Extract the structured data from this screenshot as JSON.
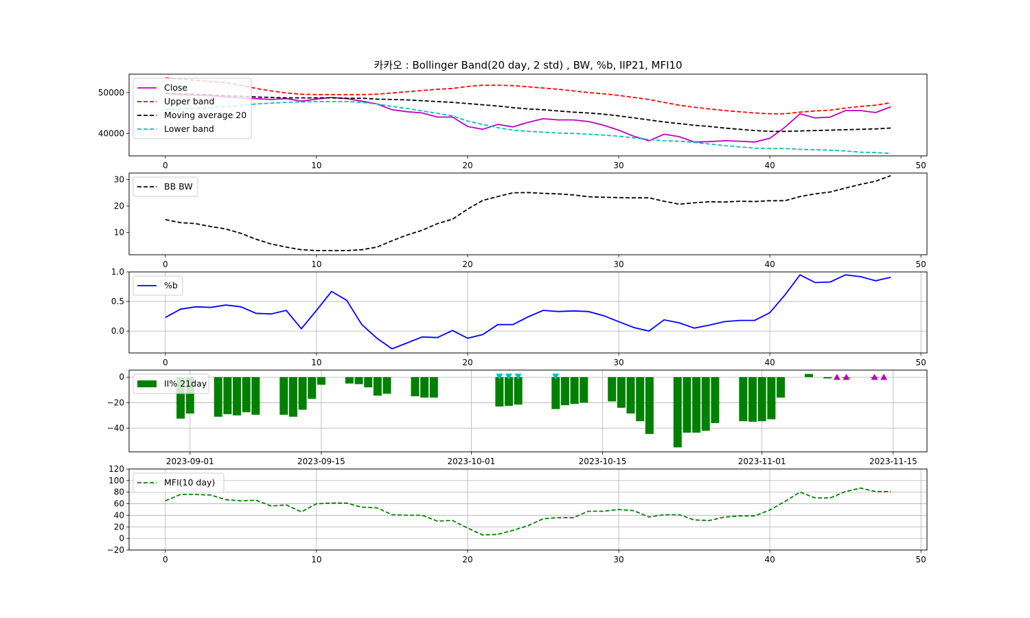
{
  "title": "카카오 : Bollinger Band(20 day, 2 std) , BW, %b, IIP21, MFI10",
  "colors": {
    "close": "#bf00bf",
    "upper": "#ff0000",
    "ma": "#000000",
    "lower": "#00bfbf",
    "bw": "#000000",
    "pb": "#0000ff",
    "iip": "#008000",
    "mfi": "#008000",
    "buy": "#bf00bf",
    "sell": "#00bfbf"
  },
  "chart_data": [
    {
      "type": "line",
      "name": "bollinger",
      "xlim": [
        -2.4,
        50.4
      ],
      "ylim": [
        34500,
        54500
      ],
      "xticks": [
        0,
        10,
        20,
        30,
        40,
        50
      ],
      "yticks": [
        40000,
        50000
      ],
      "grid": false,
      "legend": "upper-left",
      "series": [
        {
          "name": "Close",
          "color": "close",
          "dash": false,
          "values": [
            49800,
            49500,
            49300,
            49200,
            48900,
            48700,
            48500,
            48300,
            48500,
            47900,
            48400,
            48800,
            48500,
            47900,
            47200,
            45800,
            45300,
            45000,
            44000,
            44000,
            41700,
            41000,
            42200,
            41600,
            42700,
            43600,
            43300,
            43300,
            42900,
            42000,
            40800,
            39300,
            38200,
            39800,
            39200,
            37900,
            38000,
            38200,
            38100,
            37900,
            38800,
            41500,
            44800,
            43800,
            44000,
            45600,
            45600,
            45100,
            46500
          ]
        },
        {
          "name": "Upper band",
          "color": "upper",
          "dash": true,
          "values": [
            53600,
            53300,
            53000,
            52700,
            52400,
            51800,
            51000,
            50400,
            49900,
            49600,
            49500,
            49500,
            49500,
            49500,
            49600,
            49900,
            50200,
            50500,
            50800,
            51000,
            51500,
            51800,
            51800,
            51700,
            51400,
            51100,
            50800,
            50400,
            50000,
            49700,
            49300,
            48800,
            48300,
            47600,
            46900,
            46400,
            46000,
            45600,
            45300,
            45000,
            44800,
            44800,
            45200,
            45500,
            45700,
            46200,
            46600,
            46900,
            47500
          ]
        },
        {
          "name": "Moving average 20",
          "color": "ma",
          "dash": true,
          "values": [
            49800,
            49700,
            49600,
            49400,
            49200,
            49100,
            48900,
            48800,
            48700,
            48700,
            48700,
            48700,
            48600,
            48600,
            48400,
            48300,
            48200,
            48000,
            47800,
            47600,
            47300,
            47000,
            46700,
            46300,
            46000,
            45800,
            45500,
            45200,
            45000,
            44700,
            44300,
            43800,
            43300,
            42800,
            42400,
            42000,
            41700,
            41300,
            41000,
            40700,
            40500,
            40500,
            40600,
            40700,
            40800,
            40900,
            41000,
            41100,
            41300
          ]
        },
        {
          "name": "Lower band",
          "color": "lower",
          "dash": true,
          "values": [
            45900,
            46000,
            46100,
            46300,
            46600,
            46900,
            47200,
            47400,
            47600,
            47700,
            47800,
            47800,
            47800,
            47600,
            47200,
            46600,
            46100,
            45500,
            44900,
            44300,
            43000,
            42200,
            41400,
            40800,
            40500,
            40300,
            40100,
            40000,
            39800,
            39600,
            39300,
            38900,
            38500,
            38200,
            38100,
            37800,
            37400,
            37000,
            36700,
            36400,
            36300,
            36300,
            36100,
            36000,
            35900,
            35700,
            35400,
            35300,
            35100
          ]
        }
      ]
    },
    {
      "type": "line",
      "name": "bandwidth",
      "xlim": [
        -2.4,
        50.4
      ],
      "ylim": [
        1.5,
        32.5
      ],
      "xticks": [
        0,
        10,
        20,
        30,
        40,
        50
      ],
      "yticks": [
        10,
        20,
        30
      ],
      "grid": false,
      "legend": "upper-left",
      "series": [
        {
          "name": "BB BW",
          "color": "bw",
          "dash": true,
          "values": [
            14.8,
            13.7,
            13.3,
            12.2,
            11.3,
            9.6,
            7.4,
            5.6,
            4.4,
            3.4,
            3.1,
            3.1,
            3.1,
            3.4,
            4.4,
            6.8,
            9.0,
            10.8,
            13.3,
            15.0,
            18.8,
            22.1,
            23.6,
            25.0,
            25.1,
            24.8,
            24.6,
            24.2,
            23.5,
            23.3,
            23.2,
            23.1,
            23.1,
            21.8,
            20.7,
            21.2,
            21.6,
            21.5,
            21.8,
            21.7,
            22.0,
            22.0,
            23.6,
            24.6,
            25.3,
            26.8,
            28.2,
            29.4,
            31.5
          ]
        }
      ]
    },
    {
      "type": "line",
      "name": "percent-b",
      "xlim": [
        -2.4,
        50.4
      ],
      "ylim": [
        -0.37,
        1.0
      ],
      "xticks": [
        0,
        10,
        20,
        30,
        40,
        50
      ],
      "yticks": [
        0.0,
        0.5,
        1.0
      ],
      "grid": true,
      "legend": "upper-left",
      "series": [
        {
          "name": "%b",
          "color": "pb",
          "dash": false,
          "values": [
            0.23,
            0.37,
            0.41,
            0.4,
            0.44,
            0.41,
            0.3,
            0.29,
            0.35,
            0.04,
            0.35,
            0.67,
            0.52,
            0.11,
            -0.12,
            -0.3,
            -0.2,
            -0.1,
            -0.11,
            0.01,
            -0.12,
            -0.06,
            0.11,
            0.11,
            0.24,
            0.35,
            0.33,
            0.34,
            0.33,
            0.26,
            0.16,
            0.06,
            0.0,
            0.19,
            0.14,
            0.05,
            0.1,
            0.16,
            0.18,
            0.18,
            0.31,
            0.61,
            0.95,
            0.82,
            0.83,
            0.95,
            0.92,
            0.85,
            0.91
          ]
        }
      ]
    },
    {
      "type": "bar",
      "name": "ii-percent",
      "xlim": [
        -6.5,
        78.6
      ],
      "ylim": [
        -58.5,
        5.5
      ],
      "xtick_positions": [
        0,
        14,
        30,
        44,
        61,
        75
      ],
      "xticks": [
        "2023-09-01",
        "2023-09-15",
        "2023-10-01",
        "2023-10-15",
        "2023-11-01",
        "2023-11-15"
      ],
      "yticks": [
        0,
        -20,
        -40
      ],
      "ytick_labels": [
        "0",
        "−20",
        "−40"
      ],
      "grid": true,
      "legend": "upper-left",
      "series": [
        {
          "name": "II% 21day",
          "color": "iip",
          "x": [
            -1,
            0,
            3,
            4,
            5,
            6,
            7,
            10,
            11,
            12,
            13,
            14,
            17,
            18,
            19,
            20,
            21,
            24,
            25,
            26,
            33,
            34,
            35,
            39,
            40,
            41,
            42,
            45,
            46,
            47,
            48,
            49,
            52,
            53,
            54,
            55,
            56,
            59,
            60,
            61,
            62,
            63,
            66,
            68,
            70,
            73
          ],
          "values": [
            -32.5,
            -28.5,
            -31.0,
            -29.0,
            -30.0,
            -27.5,
            -29.5,
            -29.5,
            -31.0,
            -25.5,
            -17.0,
            -6.0,
            -5.0,
            -5.5,
            -8.0,
            -14.5,
            -13.0,
            -15.0,
            -16.0,
            -16.0,
            -23.0,
            -22.5,
            -21.5,
            -25.0,
            -22.0,
            -21.0,
            -20.0,
            -19.0,
            -24.0,
            -28.5,
            -34.5,
            -44.5,
            -55.0,
            -43.5,
            -43.5,
            -42.0,
            -36.0,
            -34.5,
            -35.0,
            -34.5,
            -33.0,
            -16.0,
            2.5,
            -1.0,
            -0.5,
            -0.5
          ]
        },
        {
          "name": "sell-signal",
          "color": "sell",
          "marker": "triangle-down",
          "x": [
            33,
            34,
            35,
            39
          ],
          "values": [
            0,
            0,
            0,
            0
          ]
        },
        {
          "name": "buy-signal",
          "color": "buy",
          "marker": "triangle-up",
          "x": [
            69,
            70,
            73,
            74
          ],
          "values": [
            0,
            0,
            0,
            0
          ]
        }
      ]
    },
    {
      "type": "line",
      "name": "mfi",
      "xlim": [
        -2.4,
        50.4
      ],
      "ylim": [
        -20,
        120
      ],
      "xticks": [
        0,
        10,
        20,
        30,
        40,
        50
      ],
      "yticks": [
        -20,
        0,
        20,
        40,
        60,
        80,
        100,
        120
      ],
      "ytick_labels": [
        "−20",
        "0",
        "20",
        "40",
        "60",
        "80",
        "100",
        "120"
      ],
      "grid": true,
      "legend": "upper-left",
      "series": [
        {
          "name": "MFI(10 day)",
          "color": "mfi",
          "dash": true,
          "values": [
            65,
            76,
            76,
            75,
            67,
            65,
            66,
            56,
            58,
            46,
            60,
            61,
            61,
            54,
            53,
            41,
            40,
            40,
            30,
            31,
            18,
            6,
            7,
            14,
            22,
            34,
            36,
            36,
            47,
            47,
            50,
            48,
            37,
            41,
            41,
            32,
            31,
            37,
            39,
            39,
            49,
            64,
            80,
            70,
            70,
            81,
            87,
            81,
            81
          ]
        }
      ]
    }
  ]
}
